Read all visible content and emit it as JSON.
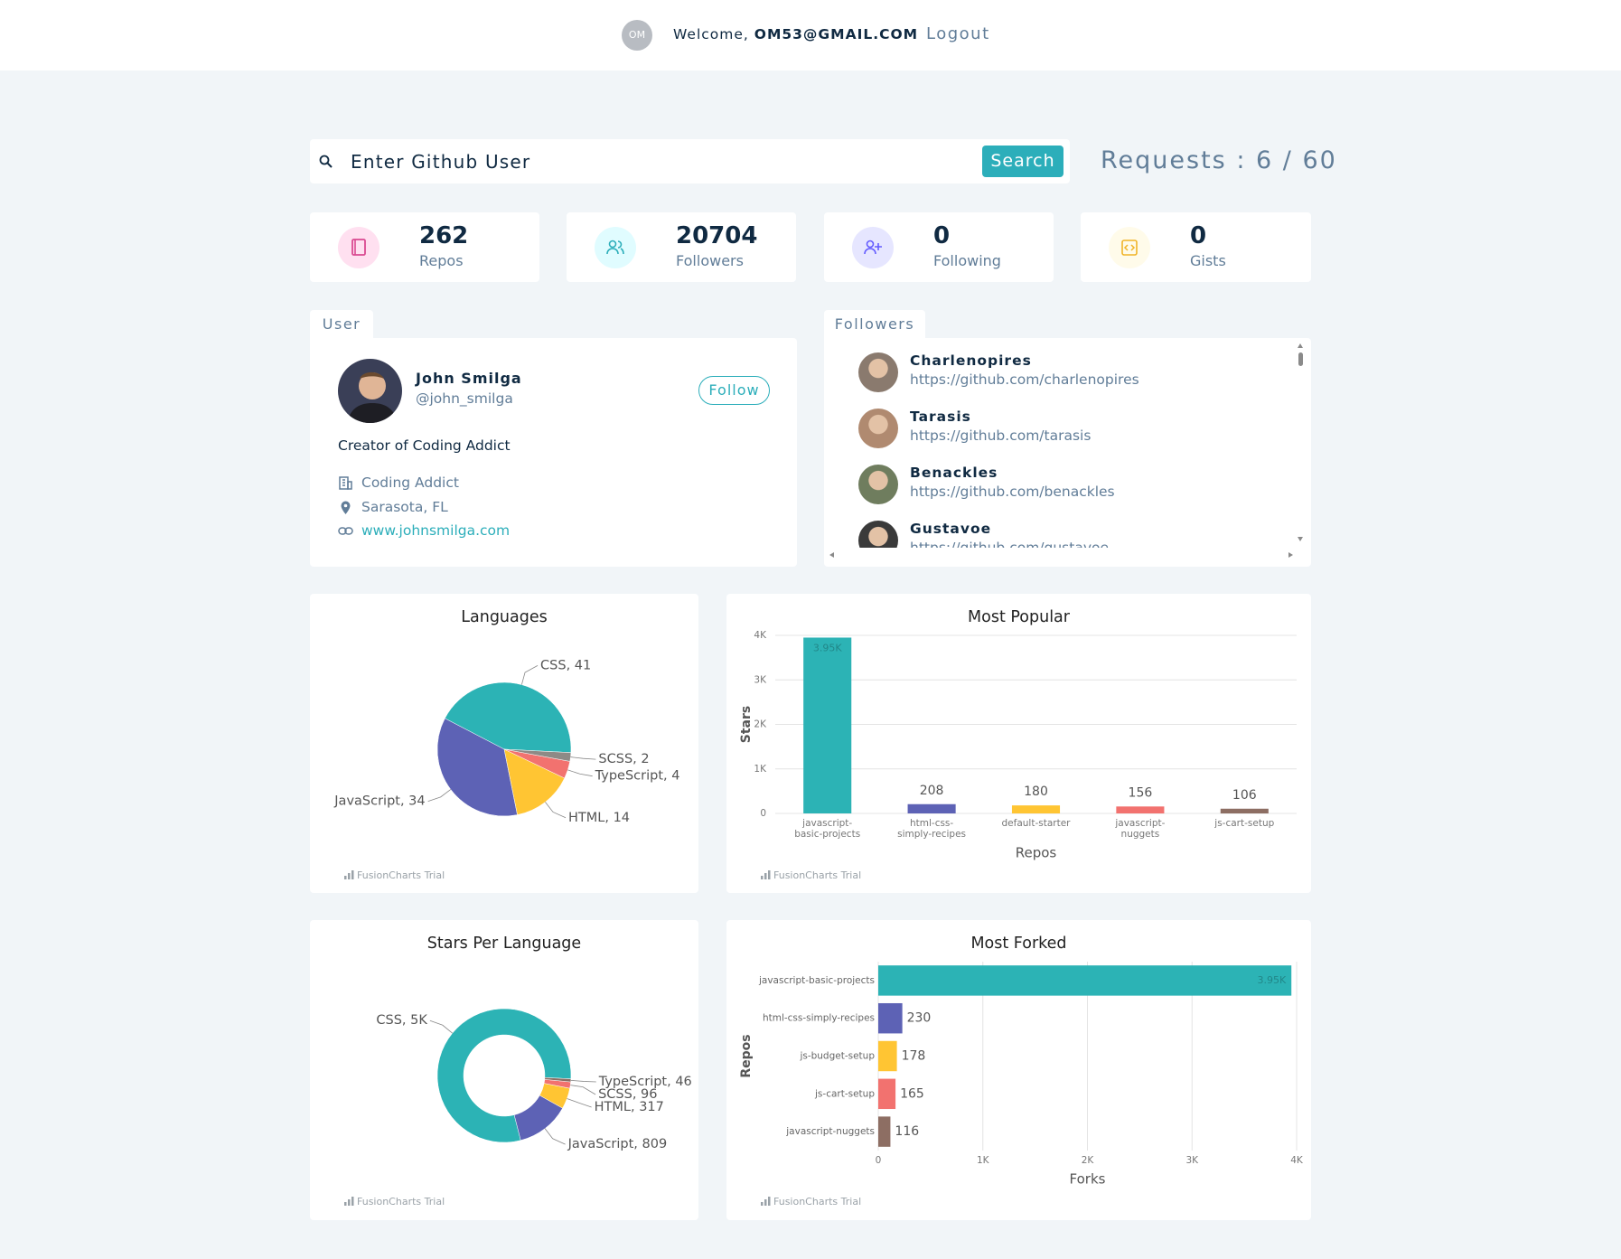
{
  "header": {
    "avatar": "OM",
    "welcome": "Welcome,",
    "email": "OM53@GMAIL.COM",
    "logout": "Logout"
  },
  "search": {
    "placeholder": "Enter Github User",
    "button": "Search",
    "requests": "Requests : 6 / 60"
  },
  "stats": [
    {
      "value": 262,
      "label": "Repos"
    },
    {
      "value": 20704,
      "label": "Followers"
    },
    {
      "value": 0,
      "label": "Following"
    },
    {
      "value": 0,
      "label": "Gists"
    }
  ],
  "user": {
    "tab": "User",
    "name": "John Smilga",
    "login": "@john_smilga",
    "follow": "Follow",
    "bio": "Creator of Coding Addict",
    "company": "Coding Addict",
    "location": "Sarasota, FL",
    "blog": "www.johnsmilga.com"
  },
  "followers": {
    "tab": "Followers",
    "items": [
      {
        "name": "Charlenopires",
        "url": "https://github.com/charlenopires"
      },
      {
        "name": "Tarasis",
        "url": "https://github.com/tarasis"
      },
      {
        "name": "Benackles",
        "url": "https://github.com/benackles"
      },
      {
        "name": "Gustavoe",
        "url": "https://github.com/gustavoe"
      }
    ]
  },
  "chart_data": [
    {
      "type": "pie",
      "title": "Languages",
      "values": [
        41,
        34,
        14,
        4,
        2
      ],
      "value_labels": [
        "CSS, 41",
        "JavaScript, 34",
        "HTML, 14",
        "TypeScript, 4",
        "SCSS, 2"
      ],
      "colors": [
        "#2cb3b5",
        "#5d62b5",
        "#ffc533",
        "#f2726f",
        "#8e8a86"
      ],
      "credit": "FusionCharts Trial"
    },
    {
      "type": "column",
      "title": "Most Popular",
      "categories": [
        "javascript-basic-projects",
        "html-css-simply-recipes",
        "default-starter",
        "javascript-nuggets",
        "js-cart-setup"
      ],
      "values": [
        3950,
        208,
        180,
        156,
        106
      ],
      "value_labels": [
        "3.95K",
        null,
        null,
        null,
        null
      ],
      "colors": [
        "#2cb3b5",
        "#5d62b5",
        "#ffc533",
        "#f2726f",
        "#8d6e63"
      ],
      "xlabel": "Repos",
      "ylabel": "Stars",
      "ylim": [
        0,
        4000
      ],
      "yticks": [
        0,
        {
          "value": 1000,
          "label": "1K"
        },
        {
          "value": 2000,
          "label": "2K"
        },
        {
          "value": 3000,
          "label": "3K"
        },
        {
          "value": 4000,
          "label": "4K"
        }
      ],
      "grid": true,
      "credit": "FusionCharts Trial"
    },
    {
      "type": "doughnut",
      "title": "Stars Per Language",
      "values": [
        5000,
        809,
        317,
        96,
        46
      ],
      "value_labels": [
        "CSS, 5K",
        "JavaScript, 809",
        "HTML, 317",
        "SCSS, 96",
        "TypeScript, 46"
      ],
      "colors": [
        "#2cb3b5",
        "#5d62b5",
        "#ffc533",
        "#f2726f",
        "#8d6e63"
      ],
      "credit": "FusionCharts Trial"
    },
    {
      "type": "bar",
      "title": "Most Forked",
      "categories": [
        "javascript-basic-projects",
        "html-css-simply-recipes",
        "js-budget-setup",
        "js-cart-setup",
        "javascript-nuggets"
      ],
      "values": [
        3950,
        230,
        178,
        165,
        116
      ],
      "value_labels": [
        "3.95K",
        null,
        null,
        null,
        null
      ],
      "colors": [
        "#2cb3b5",
        "#5d62b5",
        "#ffc533",
        "#f2726f",
        "#8d6e63"
      ],
      "xlabel": "Forks",
      "ylabel": "Repos",
      "xlim": [
        0,
        4000
      ],
      "xticks": [
        0,
        {
          "value": 1000,
          "label": "1K"
        },
        {
          "value": 2000,
          "label": "2K"
        },
        {
          "value": 3000,
          "label": "3K"
        },
        {
          "value": 4000,
          "label": "4K"
        }
      ],
      "grid": true,
      "credit": "FusionCharts Trial"
    }
  ]
}
